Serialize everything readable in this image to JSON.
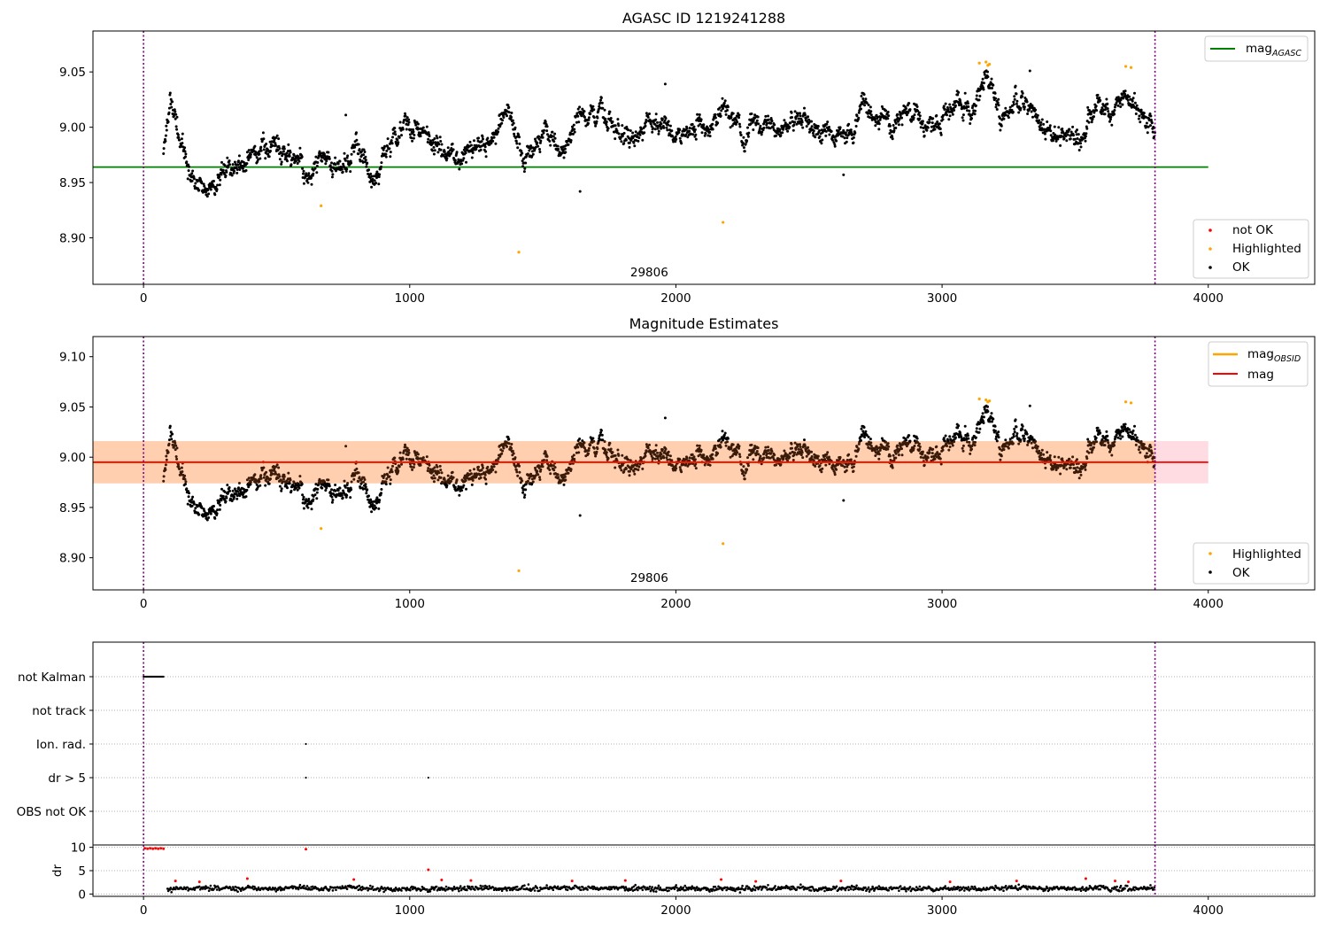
{
  "chart_data": [
    {
      "type": "scatter",
      "title": "AGASC ID 1219241288",
      "xlim": [
        -190,
        4400
      ],
      "ylim": [
        8.858,
        9.087
      ],
      "xticks": [
        "0",
        "1000",
        "2000",
        "3000",
        "4000"
      ],
      "yticks": [
        "8.90",
        "8.95",
        "9.00",
        "9.05"
      ],
      "obsid_label": "29806",
      "obsid_x": 1900,
      "interval_bounds": [
        0,
        3800
      ],
      "reference_lines": [
        {
          "name": "mag",
          "sub": "AGASC",
          "value": 8.964,
          "x_range": [
            -190,
            4000
          ],
          "color": "#008000"
        }
      ],
      "series": [
        {
          "name": "not OK",
          "color": "#ff0000",
          "values": []
        },
        {
          "name": "Highlighted",
          "color": "#ffa500",
          "points": [
            [
              667,
              8.929
            ],
            [
              1410,
              8.887
            ],
            [
              2177,
              8.914
            ],
            [
              3140,
              9.058
            ],
            [
              3165,
              9.059
            ],
            [
              3172,
              9.056
            ],
            [
              3178,
              9.057
            ],
            [
              3690,
              9.055
            ],
            [
              3710,
              9.054
            ]
          ]
        },
        {
          "name": "OK",
          "color": "#000000",
          "x_range": [
            75,
            3800
          ],
          "level": [
            [
              75,
              8.975
            ],
            [
              100,
              9.03
            ],
            [
              150,
              8.978
            ],
            [
              200,
              8.955
            ],
            [
              300,
              8.962
            ],
            [
              380,
              8.965
            ],
            [
              450,
              8.992
            ],
            [
              520,
              8.982
            ],
            [
              600,
              8.967
            ],
            [
              700,
              8.967
            ],
            [
              800,
              8.978
            ],
            [
              870,
              8.957
            ],
            [
              920,
              8.985
            ],
            [
              1000,
              9.0
            ],
            [
              1100,
              8.98
            ],
            [
              1200,
              8.975
            ],
            [
              1300,
              8.99
            ],
            [
              1360,
              9.01
            ],
            [
              1420,
              8.98
            ],
            [
              1500,
              8.995
            ],
            [
              1580,
              8.98
            ],
            [
              1650,
              9.01
            ],
            [
              1750,
              9.005
            ],
            [
              1850,
              8.985
            ],
            [
              1900,
              9.01
            ],
            [
              1950,
              8.99
            ],
            [
              2000,
              8.988
            ],
            [
              2100,
              8.998
            ],
            [
              2180,
              9.022
            ],
            [
              2250,
              8.998
            ],
            [
              2400,
              9.0
            ],
            [
              2530,
              9.0
            ],
            [
              2600,
              8.985
            ],
            [
              2700,
              9.02
            ],
            [
              2800,
              9.01
            ],
            [
              2900,
              9.01
            ],
            [
              3000,
              9.0
            ],
            [
              3100,
              9.02
            ],
            [
              3160,
              9.045
            ],
            [
              3250,
              9.005
            ],
            [
              3320,
              9.025
            ],
            [
              3400,
              8.995
            ],
            [
              3500,
              8.99
            ],
            [
              3600,
              9.01
            ],
            [
              3700,
              9.025
            ],
            [
              3760,
              9.01
            ],
            [
              3800,
              8.995
            ]
          ]
        }
      ],
      "legend": {
        "position": "top-right"
      },
      "legend2": {
        "position": "lower-right",
        "entries": [
          "not OK",
          "Highlighted",
          "OK"
        ]
      }
    },
    {
      "type": "scatter",
      "title": "Magnitude Estimates",
      "xlim": [
        -190,
        4400
      ],
      "ylim": [
        8.868,
        9.12
      ],
      "xticks": [
        "0",
        "1000",
        "2000",
        "3000",
        "4000"
      ],
      "yticks": [
        "8.90",
        "8.95",
        "9.00",
        "9.05",
        "9.10"
      ],
      "obsid_label": "29806",
      "obsid_x": 1900,
      "interval_bounds": [
        0,
        3800
      ],
      "reference_lines": [
        {
          "name": "mag",
          "sub": "OBSID",
          "value": 8.995,
          "x_range": [
            -190,
            3800
          ],
          "color": "#ffa500"
        },
        {
          "name": "mag",
          "sub": "",
          "value": 8.995,
          "x_range": [
            -190,
            4000
          ],
          "color": "#ff0000"
        }
      ],
      "bands": [
        {
          "y": [
            8.974,
            9.016
          ],
          "x_range": [
            -190,
            4000
          ],
          "color": "#ffc0cb",
          "opacity": 0.55
        },
        {
          "y": [
            8.974,
            9.016
          ],
          "x_range": [
            -190,
            3800
          ],
          "color": "#ffa500",
          "opacity": 0.22
        }
      ],
      "series": [
        {
          "name": "Highlighted",
          "color": "#ffa500",
          "points": [
            [
              667,
              8.929
            ],
            [
              1410,
              8.887
            ],
            [
              2177,
              8.914
            ],
            [
              3140,
              9.058
            ],
            [
              3165,
              9.057
            ],
            [
              3172,
              9.055
            ],
            [
              3178,
              9.056
            ],
            [
              3690,
              9.055
            ],
            [
              3710,
              9.054
            ]
          ]
        },
        {
          "name": "OK",
          "color": "#000000",
          "x_range": [
            75,
            3800
          ],
          "same_as_panel": 1
        }
      ],
      "legend": {
        "position": "top-right"
      },
      "legend2": {
        "position": "lower-right",
        "entries": [
          "Highlighted",
          "OK"
        ]
      }
    },
    {
      "type": "scatter",
      "xlim": [
        -190,
        4400
      ],
      "categories": [
        "not Kalman",
        "not track",
        "Ion. rad.",
        "dr > 5",
        "OBS not OK"
      ],
      "interval_bounds": [
        0,
        3800
      ],
      "flags": [
        {
          "category": "not Kalman",
          "x_range": [
            0,
            75
          ]
        },
        {
          "category": "Ion. rad.",
          "x": [
            610
          ]
        },
        {
          "category": "dr > 5",
          "x": [
            610,
            1070
          ]
        }
      ]
    },
    {
      "type": "scatter",
      "ylabel": "dr",
      "xlim": [
        -190,
        4400
      ],
      "ylim": [
        -0.5,
        10.5
      ],
      "xticks": [
        "0",
        "1000",
        "2000",
        "3000",
        "4000"
      ],
      "yticks": [
        "0",
        "5",
        "10"
      ],
      "interval_bounds": [
        0,
        3800
      ],
      "series": [
        {
          "name": "dr",
          "color": "#000000",
          "x_range": [
            90,
            3800
          ],
          "typical": 1.2,
          "max": 2.8
        },
        {
          "name": "dr flagged",
          "color": "#ff0000",
          "points": [
            [
              5,
              9.8
            ],
            [
              15,
              9.7
            ],
            [
              25,
              9.8
            ],
            [
              35,
              9.7
            ],
            [
              45,
              9.8
            ],
            [
              55,
              9.7
            ],
            [
              65,
              9.8
            ],
            [
              75,
              9.7
            ],
            [
              610,
              9.6
            ],
            [
              1070,
              5.2
            ],
            [
              120,
              2.8
            ],
            [
              210,
              2.6
            ],
            [
              390,
              3.3
            ],
            [
              790,
              3.1
            ],
            [
              1120,
              3.0
            ],
            [
              1230,
              2.9
            ],
            [
              1610,
              2.8
            ],
            [
              1810,
              2.9
            ],
            [
              2170,
              3.1
            ],
            [
              2300,
              2.7
            ],
            [
              2620,
              2.8
            ],
            [
              3030,
              2.6
            ],
            [
              3280,
              2.8
            ],
            [
              3540,
              3.3
            ],
            [
              3650,
              2.8
            ],
            [
              3700,
              2.6
            ]
          ]
        }
      ]
    }
  ]
}
